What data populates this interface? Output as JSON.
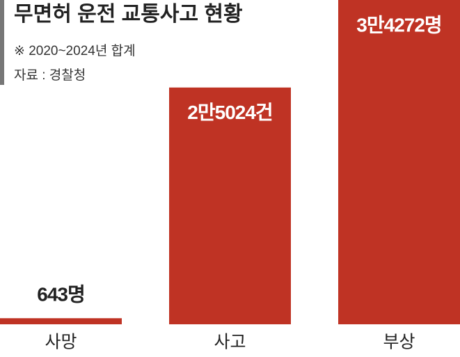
{
  "chart_data": {
    "type": "bar",
    "title": "무면허 운전 교통사고 현황",
    "subtitle": "※ 2020~2024년 합계",
    "source": "자료 : 경찰청",
    "categories": [
      "사망",
      "사고",
      "부상"
    ],
    "values": [
      643,
      25024,
      34272
    ],
    "value_labels": [
      "643명",
      "2만5024건",
      "3만4272명"
    ],
    "color": "#bf3324"
  }
}
